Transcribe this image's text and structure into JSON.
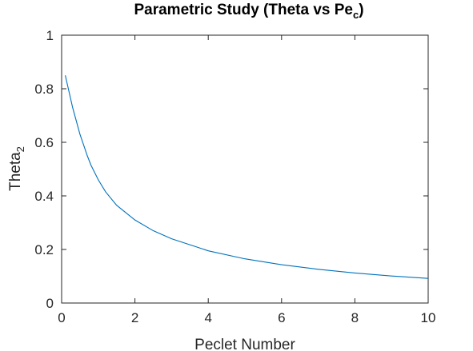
{
  "chart_data": {
    "type": "line",
    "title_main": "Parametric Study (Theta vs Pe",
    "title_sub": "c",
    "title_end": ")",
    "xlabel": "Peclet Number",
    "ylabel_main": "Theta",
    "ylabel_sub": "2",
    "xlim": [
      0,
      10
    ],
    "ylim": [
      0,
      1
    ],
    "xticks": [
      0,
      2,
      4,
      6,
      8,
      10
    ],
    "yticks": [
      0,
      0.2,
      0.4,
      0.6,
      0.8,
      1
    ],
    "xtick_labels": [
      "0",
      "2",
      "4",
      "6",
      "8",
      "10"
    ],
    "ytick_labels": [
      "0",
      "0.2",
      "0.4",
      "0.6",
      "0.8",
      "1"
    ],
    "grid": false,
    "line_color": "#0072BD",
    "series": [
      {
        "x": [
          0.1,
          0.2,
          0.3,
          0.4,
          0.5,
          0.6,
          0.7,
          0.8,
          1.0,
          1.2,
          1.5,
          2.0,
          2.5,
          3.0,
          4.0,
          5.0,
          6.0,
          7.0,
          8.0,
          9.0,
          10.0
        ],
        "values": [
          0.85,
          0.79,
          0.73,
          0.68,
          0.63,
          0.59,
          0.55,
          0.515,
          0.46,
          0.415,
          0.365,
          0.31,
          0.27,
          0.24,
          0.195,
          0.165,
          0.143,
          0.126,
          0.112,
          0.101,
          0.092
        ]
      }
    ]
  }
}
